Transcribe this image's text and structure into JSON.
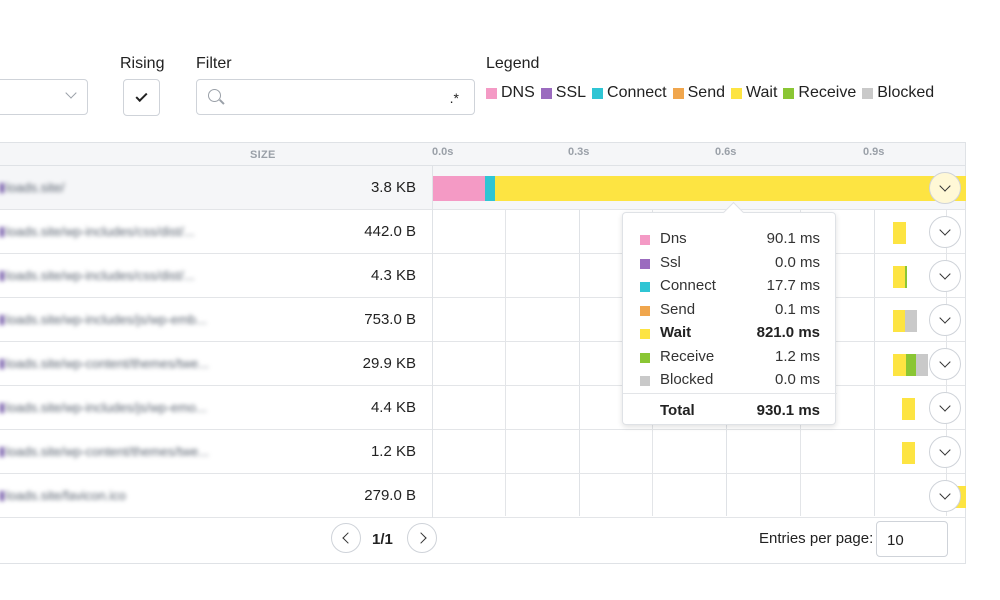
{
  "controls": {
    "rising_label": "Rising",
    "rising_checked": true,
    "filter_label": "Filter",
    "filter_value": ".*",
    "legend_label": "Legend"
  },
  "legend": [
    {
      "label": "DNS",
      "color": "#f49ac5"
    },
    {
      "label": "SSL",
      "color": "#9b6bbf"
    },
    {
      "label": "Connect",
      "color": "#2fc5d4"
    },
    {
      "label": "Send",
      "color": "#f0a64d"
    },
    {
      "label": "Wait",
      "color": "#fde442"
    },
    {
      "label": "Receive",
      "color": "#8ac634"
    },
    {
      "label": "Blocked",
      "color": "#c9c9c9"
    }
  ],
  "table": {
    "size_header": "SIZE",
    "ticks": [
      "0.0s",
      "0.3s",
      "0.6s",
      "0.9s"
    ],
    "rows": [
      {
        "url": "loads.site/",
        "size": "3.8 KB",
        "active": true
      },
      {
        "url": "loads.site/wp-includes/css/dist/...",
        "size": "442.0 B",
        "active": false
      },
      {
        "url": "loads.site/wp-includes/css/dist/...",
        "size": "4.3 KB",
        "active": false
      },
      {
        "url": "loads.site/wp-includes/js/wp-emb...",
        "size": "753.0 B",
        "active": false
      },
      {
        "url": "loads.site/wp-content/themes/twe...",
        "size": "29.9 KB",
        "active": false
      },
      {
        "url": "loads.site/wp-includes/js/wp-emo...",
        "size": "4.4 KB",
        "active": false
      },
      {
        "url": "loads.site/wp-content/themes/twe...",
        "size": "1.2 KB",
        "active": false
      },
      {
        "url": "loads.site/favicon.ico",
        "size": "279.0 B",
        "active": false
      }
    ]
  },
  "tooltip": {
    "rows": [
      {
        "name": "Dns",
        "value": "90.1 ms",
        "color": "#f49ac5",
        "bold": false
      },
      {
        "name": "Ssl",
        "value": "0.0 ms",
        "color": "#9b6bbf",
        "bold": false
      },
      {
        "name": "Connect",
        "value": "17.7 ms",
        "color": "#2fc5d4",
        "bold": false
      },
      {
        "name": "Send",
        "value": "0.1 ms",
        "color": "#f0a64d",
        "bold": false
      },
      {
        "name": "Wait",
        "value": "821.0 ms",
        "color": "#fde442",
        "bold": true
      },
      {
        "name": "Receive",
        "value": "1.2 ms",
        "color": "#8ac634",
        "bold": false
      },
      {
        "name": "Blocked",
        "value": "0.0 ms",
        "color": "#c9c9c9",
        "bold": false
      }
    ],
    "total_label": "Total",
    "total_value": "930.1 ms"
  },
  "pagination": {
    "page_text": "1/1",
    "entries_label": "Entries per page:",
    "entries_value": "10"
  }
}
